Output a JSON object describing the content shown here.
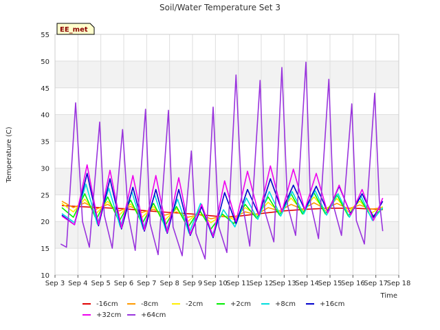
{
  "chart_data": {
    "type": "line",
    "title": "Soil/Water Temperature Set 3",
    "xlabel": "Time",
    "ylabel": "Temperature (C)",
    "badge": "EE_met",
    "ylim": [
      10,
      55
    ],
    "yticks": [
      10,
      15,
      20,
      25,
      30,
      35,
      40,
      45,
      50,
      55
    ],
    "xlim": [
      3,
      18
    ],
    "xticks": [
      3,
      4,
      5,
      6,
      7,
      8,
      9,
      10,
      11,
      12,
      13,
      14,
      15,
      16,
      17,
      18
    ],
    "xtick_labels": [
      "Sep 3",
      "Sep 4",
      "Sep 5",
      "Sep 6",
      "Sep 7",
      "Sep 8",
      "Sep 9",
      "Sep 10",
      "Sep 11",
      "Sep 12",
      "Sep 13",
      "Sep 14",
      "Sep 15",
      "Sep 16",
      "Sep 17",
      "Sep 18"
    ],
    "grid": true,
    "legend_placement": "bottom",
    "series": [
      {
        "name": "-16cm",
        "color": "#e00000",
        "x": [
          3.3,
          4,
          5,
          6,
          7,
          8,
          9,
          10,
          10.5,
          11,
          12,
          13,
          14,
          15,
          16,
          17,
          17.3
        ],
        "values": [
          23.0,
          22.8,
          22.6,
          22.4,
          22.0,
          21.7,
          21.4,
          21.0,
          20.9,
          21.0,
          21.5,
          22.0,
          22.3,
          22.5,
          22.5,
          22.3,
          22.2
        ]
      },
      {
        "name": "-8cm",
        "color": "#ff9900",
        "x": [
          3.3,
          3.8,
          4.3,
          4.8,
          5.3,
          5.8,
          6.3,
          6.8,
          7.3,
          7.8,
          8.3,
          8.8,
          9.3,
          9.8,
          10.3,
          10.8,
          11.3,
          11.8,
          12.3,
          12.8,
          13.3,
          13.8,
          14.3,
          14.8,
          15.3,
          15.8,
          16.3,
          16.8,
          17.3
        ],
        "values": [
          23.8,
          22.6,
          23.5,
          22.3,
          23.2,
          22.0,
          22.8,
          21.7,
          22.3,
          21.2,
          21.8,
          20.8,
          21.3,
          20.5,
          21.0,
          20.8,
          21.8,
          21.3,
          22.6,
          22.0,
          23.2,
          22.3,
          23.5,
          22.4,
          23.4,
          22.4,
          23.1,
          22.3,
          22.6
        ]
      },
      {
        "name": "-2cm",
        "color": "#ffee00",
        "x": [
          3.3,
          3.8,
          4.3,
          4.8,
          5.3,
          5.8,
          6.3,
          6.8,
          7.3,
          7.8,
          8.3,
          8.8,
          9.3,
          9.8,
          10.3,
          10.8,
          11.3,
          11.8,
          12.3,
          12.8,
          13.3,
          13.8,
          14.3,
          14.8,
          15.3,
          15.8,
          16.3,
          16.8,
          17.3
        ],
        "values": [
          23.4,
          21.8,
          24.2,
          21.5,
          23.8,
          21.2,
          23.3,
          20.8,
          22.8,
          20.3,
          22.4,
          20.0,
          21.9,
          19.8,
          21.2,
          20.4,
          22.6,
          21.2,
          23.6,
          21.8,
          24.4,
          22.0,
          24.6,
          22.0,
          24.3,
          21.8,
          23.8,
          21.6,
          22.8
        ]
      },
      {
        "name": "+2cm",
        "color": "#00ee00",
        "x": [
          3.3,
          3.8,
          4.3,
          4.8,
          5.3,
          5.8,
          6.3,
          6.8,
          7.3,
          7.8,
          8.3,
          8.8,
          9.3,
          9.8,
          10.3,
          10.8,
          11.3,
          11.8,
          12.3,
          12.8,
          13.3,
          13.8,
          14.3,
          14.8,
          15.3,
          15.8,
          16.3,
          16.8,
          17.3
        ],
        "values": [
          22.6,
          20.8,
          25.2,
          20.4,
          24.6,
          20.0,
          24.0,
          19.6,
          23.4,
          19.2,
          22.8,
          18.9,
          22.2,
          18.6,
          21.4,
          19.6,
          23.2,
          20.6,
          24.6,
          21.2,
          25.2,
          21.4,
          25.4,
          21.4,
          25.0,
          21.0,
          24.4,
          20.8,
          22.4
        ]
      },
      {
        "name": "+8cm",
        "color": "#00dddd",
        "x": [
          3.3,
          3.85,
          4.35,
          4.85,
          5.35,
          5.85,
          6.35,
          6.85,
          7.35,
          7.85,
          8.35,
          8.85,
          9.35,
          9.85,
          10.35,
          10.85,
          11.35,
          11.85,
          12.35,
          12.85,
          13.35,
          13.85,
          14.35,
          14.85,
          15.35,
          15.85,
          16.35,
          16.85,
          17.3
        ],
        "values": [
          21.5,
          19.8,
          27.0,
          19.5,
          26.2,
          19.0,
          25.6,
          18.6,
          25.0,
          18.2,
          24.2,
          17.8,
          23.4,
          17.4,
          22.2,
          19.0,
          24.4,
          20.4,
          25.6,
          21.0,
          25.6,
          21.4,
          25.8,
          21.2,
          25.2,
          20.8,
          24.8,
          20.2,
          22.6
        ]
      },
      {
        "name": "+16cm",
        "color": "#0000cc",
        "x": [
          3.3,
          3.85,
          4.4,
          4.9,
          5.4,
          5.9,
          6.4,
          6.9,
          7.4,
          7.9,
          8.4,
          8.9,
          9.4,
          9.9,
          10.4,
          10.9,
          11.4,
          11.9,
          12.4,
          12.9,
          13.4,
          13.9,
          14.4,
          14.9,
          15.4,
          15.9,
          16.4,
          16.9,
          17.3
        ],
        "values": [
          21.2,
          19.4,
          29.0,
          19.2,
          28.0,
          18.6,
          26.4,
          18.2,
          26.0,
          17.8,
          26.0,
          17.4,
          22.8,
          17.0,
          25.4,
          19.6,
          26.0,
          21.2,
          28.0,
          22.0,
          26.8,
          22.2,
          26.6,
          21.8,
          26.6,
          21.4,
          25.2,
          20.8,
          23.8
        ]
      },
      {
        "name": "+32cm",
        "color": "#ee00ee",
        "x": [
          3.3,
          3.85,
          4.4,
          4.9,
          5.4,
          5.9,
          6.4,
          6.9,
          7.4,
          7.9,
          8.4,
          8.9,
          9.4,
          9.9,
          10.4,
          10.9,
          11.4,
          11.9,
          12.4,
          12.9,
          13.4,
          13.9,
          14.4,
          14.9,
          15.4,
          15.9,
          16.4,
          16.9,
          17.3
        ],
        "values": [
          21.0,
          19.4,
          30.6,
          19.4,
          29.6,
          18.8,
          28.6,
          18.4,
          28.6,
          18.0,
          28.2,
          17.6,
          23.2,
          17.2,
          27.6,
          20.0,
          29.4,
          21.2,
          30.4,
          21.8,
          29.8,
          22.2,
          29.0,
          21.6,
          26.8,
          21.2,
          26.0,
          20.2,
          24.4
        ]
      },
      {
        "name": "+64cm",
        "color": "#9933dd",
        "x": [
          3.25,
          3.5,
          3.9,
          4.2,
          4.5,
          4.95,
          5.15,
          5.5,
          5.95,
          6.2,
          6.5,
          6.95,
          7.15,
          7.5,
          7.95,
          8.15,
          8.55,
          8.95,
          9.15,
          9.55,
          9.9,
          10.15,
          10.5,
          10.9,
          11.15,
          11.5,
          11.95,
          12.15,
          12.55,
          12.9,
          13.15,
          13.5,
          13.95,
          14.15,
          14.5,
          14.95,
          15.15,
          15.5,
          15.95,
          16.15,
          16.5,
          16.95,
          17.15,
          17.3
        ],
        "values": [
          15.8,
          15.2,
          42.2,
          20.0,
          15.2,
          38.6,
          21.2,
          15.0,
          37.2,
          21.0,
          14.6,
          41.0,
          19.6,
          13.8,
          40.8,
          19.0,
          13.6,
          33.2,
          17.8,
          13.0,
          41.4,
          19.0,
          14.2,
          47.4,
          24.0,
          15.4,
          46.4,
          22.0,
          16.2,
          48.8,
          23.0,
          17.4,
          49.8,
          23.4,
          16.8,
          46.6,
          23.0,
          17.4,
          42.0,
          20.2,
          15.8,
          44.0,
          24.0,
          18.2
        ]
      }
    ]
  }
}
